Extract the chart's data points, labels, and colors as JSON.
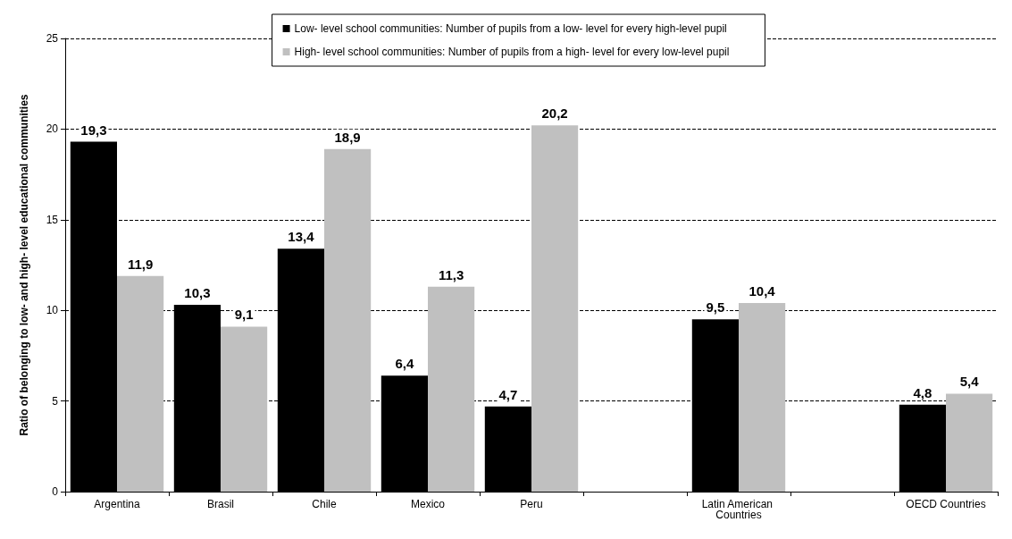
{
  "chart_data": {
    "type": "bar",
    "ylabel": "Ratio of belonging to low- and high- level educational communities",
    "categories": [
      "Argentina",
      "Brasil",
      "Chile",
      "Mexico",
      "Peru",
      null,
      "Latin American Countries",
      null,
      "OECD Countries"
    ],
    "series": [
      {
        "name": "Low- level school communities: Number of pupils from a low- level for every high-level pupil",
        "color": "#000000",
        "values": [
          19.3,
          10.3,
          13.4,
          6.4,
          4.7,
          null,
          9.5,
          null,
          4.8
        ],
        "value_labels": [
          "19,3",
          "10,3",
          "13,4",
          "6,4",
          "4,7",
          null,
          "9,5",
          null,
          "4,8"
        ]
      },
      {
        "name": "High- level school communities: Number of pupils from a high- level for every low-level pupil",
        "color": "#c0c0c0",
        "values": [
          11.9,
          9.1,
          18.9,
          11.3,
          20.2,
          null,
          10.4,
          null,
          5.4
        ],
        "value_labels": [
          "11,9",
          "9,1",
          "18,9",
          "11,3",
          "20,2",
          null,
          "10,4",
          null,
          "5,4"
        ]
      }
    ],
    "ylim": [
      0,
      25
    ],
    "yticks": [
      0,
      5,
      10,
      15,
      20,
      25
    ],
    "grid": "y",
    "legend": "top"
  }
}
